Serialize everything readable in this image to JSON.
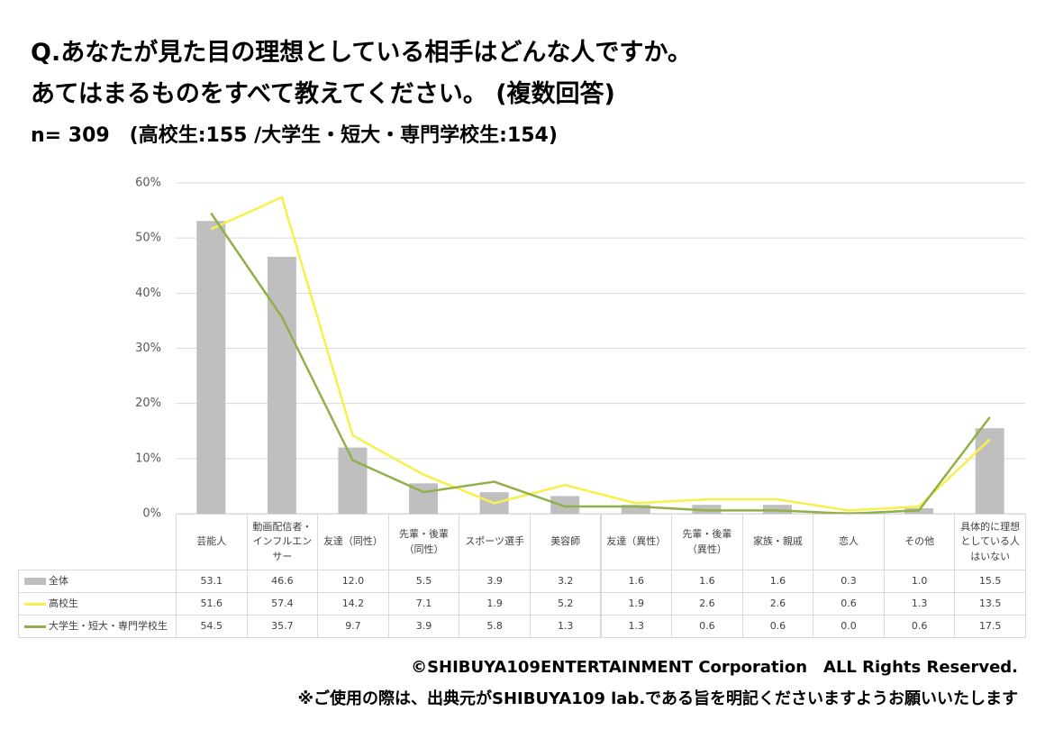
{
  "chart_data": {
    "type": "bar-line-table",
    "title": [
      "Q.あなたが見た目の理想としている相手はどんな人ですか。",
      "あてはまるものをすべて教えてください。 (複数回答)"
    ],
    "subtitle": "n= 309　(高校生:155 /大学生・短大・専門学校生:154)",
    "categories": [
      "芸能人",
      "動画配信者・インフルエンサー",
      "友達（同性）",
      "先輩・後輩（同性）",
      "スポーツ選手",
      "美容師",
      "友達（異性）",
      "先輩・後輩（異性）",
      "家族・親戚",
      "恋人",
      "その他",
      "具体的に理想としている人はいない"
    ],
    "ylim": [
      0,
      60
    ],
    "yticks": [
      {
        "value": 0,
        "label": "0%"
      },
      {
        "value": 10,
        "label": "10%"
      },
      {
        "value": 20,
        "label": "20%"
      },
      {
        "value": 30,
        "label": "30%"
      },
      {
        "value": 40,
        "label": "40%"
      },
      {
        "value": 50,
        "label": "50%"
      },
      {
        "value": 60,
        "label": "60%"
      }
    ],
    "grid": true,
    "series": [
      {
        "name": "全体",
        "kind": "bar",
        "color": "#bfbfbf",
        "values": [
          53.1,
          46.6,
          12.0,
          5.5,
          3.9,
          3.2,
          1.6,
          1.6,
          1.6,
          0.3,
          1.0,
          15.5
        ],
        "value_labels": [
          "53.1",
          "46.6",
          "12.0",
          "5.5",
          "3.9",
          "3.2",
          "1.6",
          "1.6",
          "1.6",
          "0.3",
          "1.0",
          "15.5"
        ]
      },
      {
        "name": "高校生",
        "kind": "line",
        "color": "#f7f04a",
        "values": [
          51.6,
          57.4,
          14.2,
          7.1,
          1.9,
          5.2,
          1.9,
          2.6,
          2.6,
          0.6,
          1.3,
          13.5
        ],
        "value_labels": [
          "51.6",
          "57.4",
          "14.2",
          "7.1",
          "1.9",
          "5.2",
          "1.9",
          "2.6",
          "2.6",
          "0.6",
          "1.3",
          "13.5"
        ]
      },
      {
        "name": "大学生・短大・専門学校生",
        "kind": "line",
        "color": "#8fb04a",
        "values": [
          54.5,
          35.7,
          9.7,
          3.9,
          5.8,
          1.3,
          1.3,
          0.6,
          0.6,
          0.0,
          0.6,
          17.5
        ],
        "value_labels": [
          "54.5",
          "35.7",
          "9.7",
          "3.9",
          "5.8",
          "1.3",
          "1.3",
          "0.6",
          "0.6",
          "0.0",
          "0.6",
          "17.5"
        ]
      }
    ],
    "footer": [
      "©SHIBUYA109ENTERTAINMENT Corporation　ALL Rights Reserved.",
      "※ご使用の際は、出典元がSHIBUYA109 lab.である旨を明記くださいますようお願いいたします"
    ]
  }
}
